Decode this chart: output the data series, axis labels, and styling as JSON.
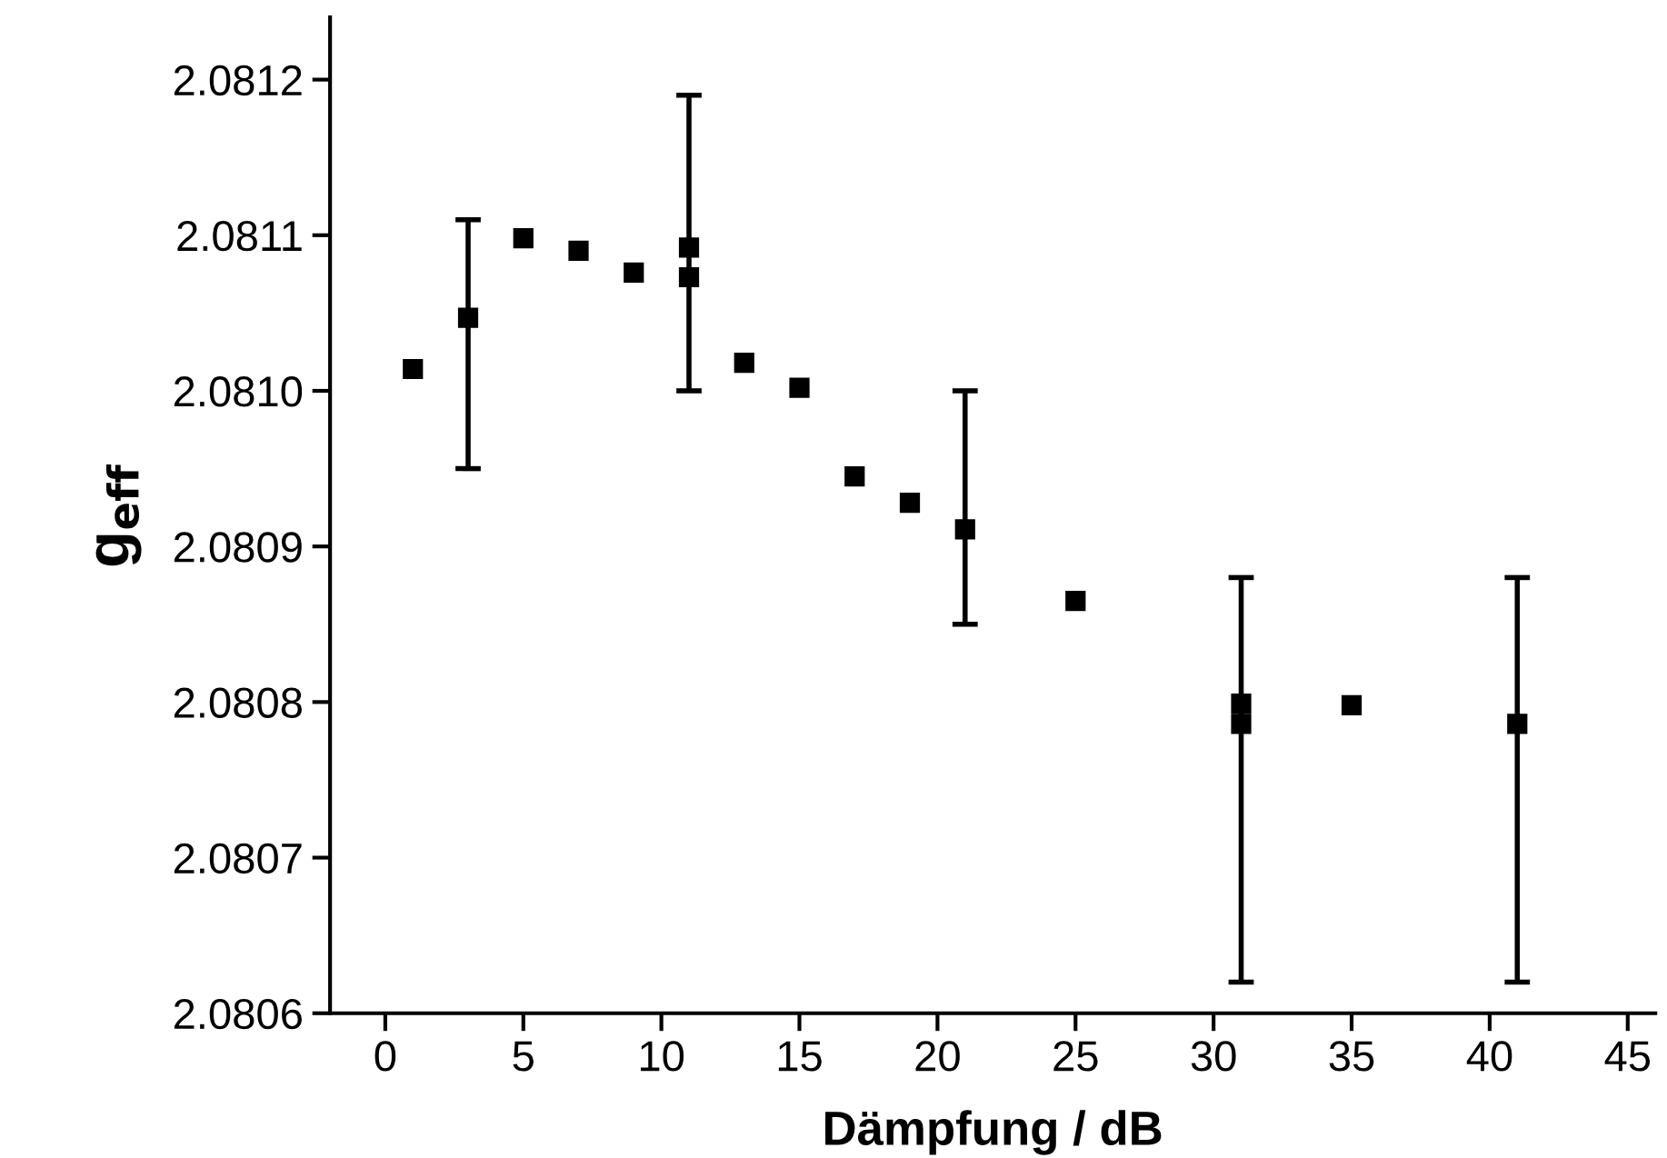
{
  "chart_data": {
    "type": "scatter",
    "xlabel": "Dämpfung / dB",
    "ylabel": "g$_{eff}$",
    "x": [
      1,
      3,
      5,
      7,
      9,
      11,
      11,
      13,
      15,
      17,
      19,
      21,
      25,
      31,
      31,
      35,
      41
    ],
    "series": [
      {
        "color": "#000000",
        "values": [
          2.081014,
          2.081047,
          2.081098,
          2.08109,
          2.081076,
          2.081092,
          2.081073,
          2.081018,
          2.081002,
          2.080945,
          2.080928,
          2.080911,
          2.080865,
          2.080799,
          2.080786,
          2.080798,
          2.080786
        ],
        "errors": [
          null,
          [
            2.08095,
            2.08111
          ],
          null,
          null,
          null,
          [
            2.081,
            2.08119
          ],
          null,
          null,
          null,
          null,
          null,
          [
            2.08085,
            2.081
          ],
          null,
          [
            2.08062,
            2.08088
          ],
          null,
          null,
          [
            2.08062,
            2.08088
          ]
        ]
      }
    ],
    "xlim": [
      -2,
      46
    ],
    "xticks": [
      0,
      5,
      10,
      15,
      20,
      25,
      30,
      35,
      40,
      45
    ],
    "ylim": [
      2.0806,
      2.08124
    ],
    "yticks": [
      2.0806,
      2.0807,
      2.0808,
      2.0809,
      {
        "value": 2.081,
        "label": "2.0810"
      },
      2.0811,
      2.0812
    ],
    "marker": "square",
    "grid": false,
    "legend": false
  }
}
